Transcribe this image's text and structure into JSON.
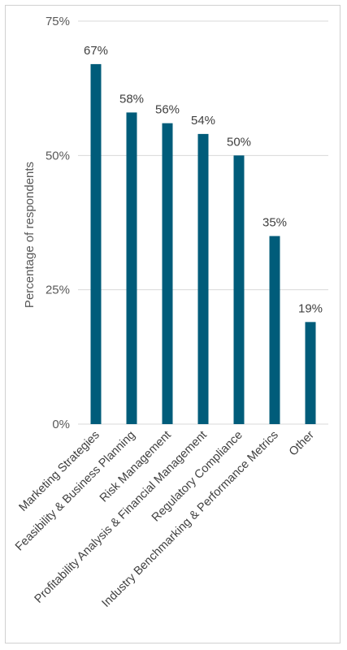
{
  "chart_data": {
    "type": "bar",
    "ylabel": "Percentage of respondents",
    "ylim": [
      0,
      75
    ],
    "yticks": [
      0,
      25,
      50,
      75
    ],
    "ytick_labels": [
      "0%",
      "25%",
      "50%",
      "75%"
    ],
    "grid": true,
    "bar_color": "#005c7a",
    "categories": [
      "Marketing Strategies",
      "Feasibility & Business Planning",
      "Risk Management",
      "Profitability Analysis & Financial Management",
      "Regulatory Compliance",
      "Industry Benchmarking & Performance Metrics",
      "Other"
    ],
    "values": [
      67,
      58,
      56,
      54,
      50,
      35,
      19
    ],
    "data_labels": [
      "67%",
      "58%",
      "56%",
      "54%",
      "50%",
      "35%",
      "19%"
    ]
  }
}
